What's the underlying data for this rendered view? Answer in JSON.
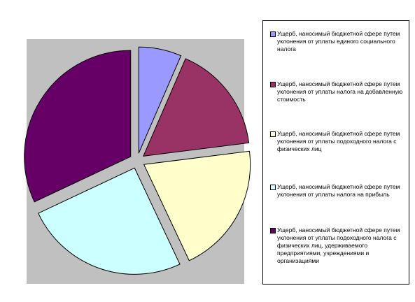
{
  "chart_data": {
    "type": "pie",
    "exploded": true,
    "plot_background": "#c0c0c0",
    "legend_position": "right",
    "slices": [
      {
        "label": "Ущерб, наносимый бюджетной сфере путем уклонения от уплаты единого социального налога",
        "value": 6.5,
        "color": "#9999ff"
      },
      {
        "label": "Ущерб, наносимый бюджетной сфере путем уклонения от уплаты налога на добавленную стоимость",
        "value": 16.5,
        "color": "#993366"
      },
      {
        "label": "Ущерб, наносимый бюджетной сфере путем уклонения от уплаты подоходного налога с физических лиц",
        "value": 20.0,
        "color": "#ffffcc"
      },
      {
        "label": "Ущерб, наносимый бюджетной сфере путем уклонения от уплаты налога на прибыль",
        "value": 25.0,
        "color": "#ccffff"
      },
      {
        "label": "Ущерб, наносимый бюджетной сфере путем уклонения от уплаты подоходного налога с физических лиц, удерживаемого предприятиями, учреждениями и организациями",
        "value": 32.0,
        "color": "#660066"
      }
    ]
  }
}
